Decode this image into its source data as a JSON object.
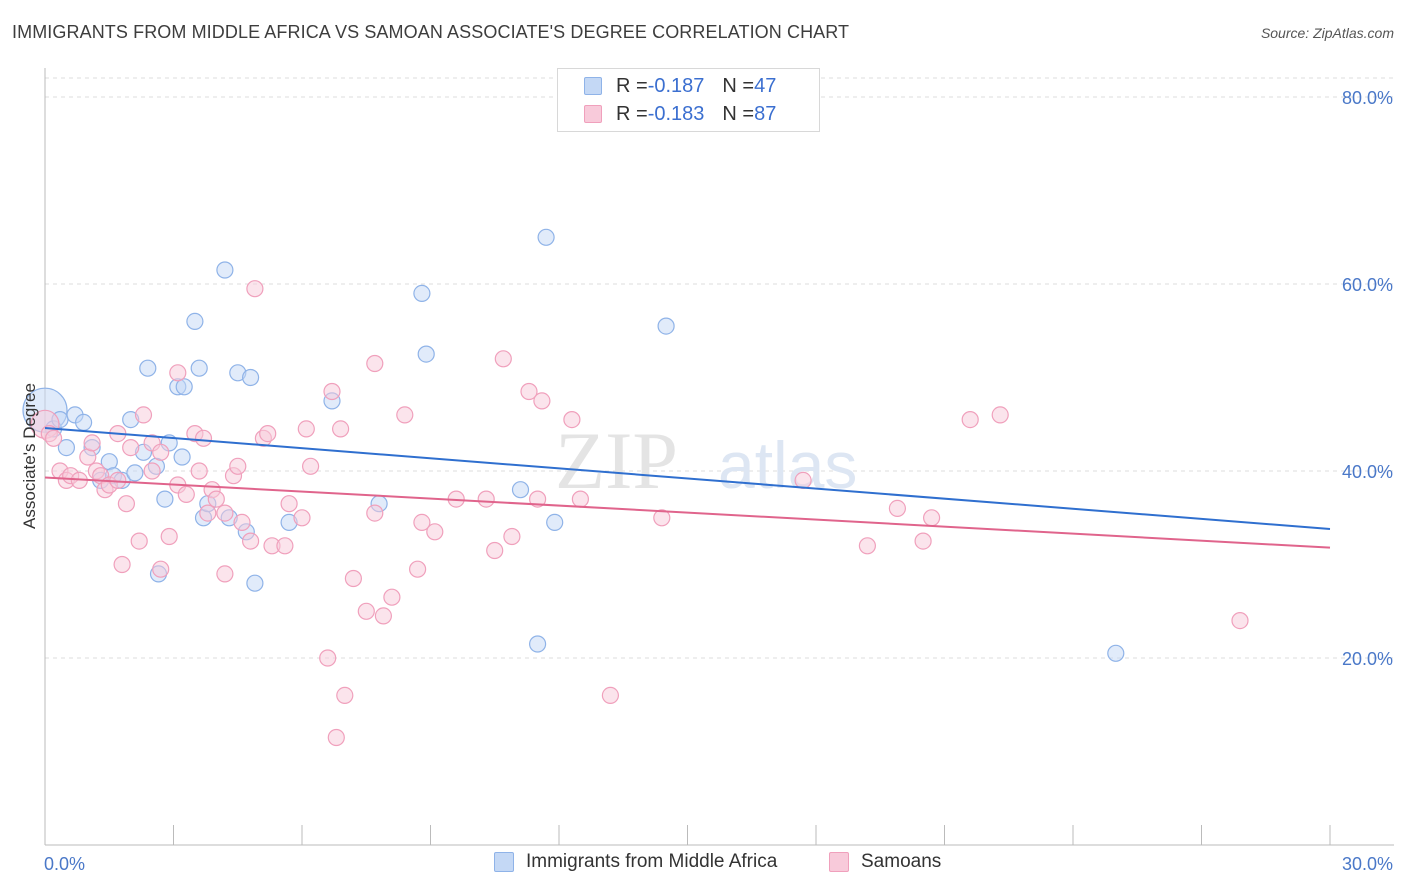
{
  "title": "IMMIGRANTS FROM MIDDLE AFRICA VS SAMOAN ASSOCIATE'S DEGREE CORRELATION CHART",
  "source": "Source: ZipAtlas.com",
  "watermark": {
    "zip": "ZIP",
    "atlas": "atlas"
  },
  "legend": {
    "rows": [
      {
        "r_label": "R = ",
        "r_value": "-0.187",
        "n_label": "N = ",
        "n_value": "47"
      },
      {
        "r_label": "R = ",
        "r_value": "-0.183",
        "n_label": "N = ",
        "n_value": "87"
      }
    ]
  },
  "chart_data": {
    "type": "scatter",
    "title": "IMMIGRANTS FROM MIDDLE AFRICA VS SAMOAN ASSOCIATE'S DEGREE CORRELATION CHART",
    "xlabel": "",
    "ylabel": "Associate's Degree",
    "xlim": [
      0,
      30
    ],
    "ylim": [
      0,
      80
    ],
    "x_tick_labels": [
      "0.0%",
      "30.0%"
    ],
    "y_tick_labels": [
      "20.0%",
      "40.0%",
      "60.0%",
      "80.0%"
    ],
    "y_ticks": [
      20,
      40,
      60,
      80
    ],
    "grid": true,
    "legend_position": "top-center",
    "series": [
      {
        "name": "Immigrants from Middle Africa",
        "color": "#8fb3e8",
        "fill": "#c4d8f5",
        "line_color": "#2f6fcf",
        "trend": {
          "x0": 0,
          "y0": 44.6,
          "x1": 30,
          "y1": 33.8
        },
        "points": [
          [
            0.0,
            46.5,
            22
          ],
          [
            0.2,
            44.5,
            8
          ],
          [
            0.35,
            45.5,
            8
          ],
          [
            0.5,
            42.5,
            8
          ],
          [
            0.7,
            46.0,
            8
          ],
          [
            0.9,
            45.2,
            8
          ],
          [
            1.1,
            42.5,
            8
          ],
          [
            1.3,
            39.0,
            8
          ],
          [
            1.5,
            41.0,
            8
          ],
          [
            1.6,
            39.5,
            8
          ],
          [
            1.8,
            39.0,
            8
          ],
          [
            2.0,
            45.5,
            8
          ],
          [
            2.1,
            39.8,
            8
          ],
          [
            2.3,
            42.0,
            8
          ],
          [
            2.4,
            51.0,
            8
          ],
          [
            2.6,
            40.5,
            8
          ],
          [
            2.65,
            29.0,
            8
          ],
          [
            2.8,
            37.0,
            8
          ],
          [
            2.9,
            43.0,
            8
          ],
          [
            3.1,
            49.0,
            8
          ],
          [
            3.2,
            41.5,
            8
          ],
          [
            3.25,
            49.0,
            8
          ],
          [
            3.5,
            56.0,
            8
          ],
          [
            3.6,
            51.0,
            8
          ],
          [
            3.7,
            35.0,
            8
          ],
          [
            3.8,
            36.5,
            8
          ],
          [
            4.2,
            61.5,
            8
          ],
          [
            4.3,
            35.0,
            8
          ],
          [
            4.5,
            50.5,
            8
          ],
          [
            4.7,
            33.5,
            8
          ],
          [
            4.8,
            50.0,
            8
          ],
          [
            4.9,
            28.0,
            8
          ],
          [
            5.7,
            34.5,
            8
          ],
          [
            6.7,
            47.5,
            8
          ],
          [
            7.8,
            36.5,
            8
          ],
          [
            8.8,
            59.0,
            8
          ],
          [
            8.9,
            52.5,
            8
          ],
          [
            11.1,
            38.0,
            8
          ],
          [
            11.5,
            21.5,
            8
          ],
          [
            11.9,
            34.5,
            8
          ],
          [
            11.7,
            65.0,
            8
          ],
          [
            14.5,
            55.5,
            8
          ],
          [
            25.0,
            20.5,
            8
          ]
        ]
      },
      {
        "name": "Samoans",
        "color": "#f0a0bc",
        "fill": "#f8cada",
        "line_color": "#e0648c",
        "trend": {
          "x0": 0,
          "y0": 39.3,
          "x1": 30,
          "y1": 31.8
        },
        "points": [
          [
            0.0,
            45.0,
            14
          ],
          [
            0.1,
            44.0,
            8
          ],
          [
            0.2,
            43.5,
            8
          ],
          [
            0.35,
            40.0,
            8
          ],
          [
            0.5,
            39.0,
            8
          ],
          [
            0.6,
            39.5,
            8
          ],
          [
            0.8,
            39.0,
            8
          ],
          [
            1.0,
            41.5,
            8
          ],
          [
            1.1,
            43.0,
            8
          ],
          [
            1.2,
            40.0,
            8
          ],
          [
            1.3,
            39.5,
            8
          ],
          [
            1.4,
            38.0,
            8
          ],
          [
            1.5,
            38.5,
            8
          ],
          [
            1.7,
            39.0,
            8
          ],
          [
            1.7,
            44.0,
            8
          ],
          [
            1.8,
            30.0,
            8
          ],
          [
            1.9,
            36.5,
            8
          ],
          [
            2.0,
            42.5,
            8
          ],
          [
            2.2,
            32.5,
            8
          ],
          [
            2.3,
            46.0,
            8
          ],
          [
            2.5,
            43.0,
            8
          ],
          [
            2.5,
            40.0,
            8
          ],
          [
            2.7,
            42.0,
            8
          ],
          [
            2.7,
            29.5,
            8
          ],
          [
            2.9,
            33.0,
            8
          ],
          [
            3.1,
            50.5,
            8
          ],
          [
            3.1,
            38.5,
            8
          ],
          [
            3.3,
            37.5,
            8
          ],
          [
            3.5,
            44.0,
            8
          ],
          [
            3.6,
            40.0,
            8
          ],
          [
            3.7,
            43.5,
            8
          ],
          [
            3.8,
            35.5,
            8
          ],
          [
            3.9,
            38.0,
            8
          ],
          [
            4.0,
            37.0,
            8
          ],
          [
            4.2,
            35.5,
            8
          ],
          [
            4.2,
            29.0,
            8
          ],
          [
            4.4,
            39.5,
            8
          ],
          [
            4.5,
            40.5,
            8
          ],
          [
            4.6,
            34.5,
            8
          ],
          [
            4.8,
            32.5,
            8
          ],
          [
            4.9,
            59.5,
            8
          ],
          [
            5.1,
            43.5,
            8
          ],
          [
            5.2,
            44.0,
            8
          ],
          [
            5.3,
            32.0,
            8
          ],
          [
            5.6,
            32.0,
            8
          ],
          [
            5.7,
            36.5,
            8
          ],
          [
            6.0,
            35.0,
            8
          ],
          [
            6.1,
            44.5,
            8
          ],
          [
            6.2,
            40.5,
            8
          ],
          [
            6.6,
            20.0,
            8
          ],
          [
            6.7,
            48.5,
            8
          ],
          [
            6.8,
            11.5,
            8
          ],
          [
            6.9,
            44.5,
            8
          ],
          [
            7.0,
            16.0,
            8
          ],
          [
            7.2,
            28.5,
            8
          ],
          [
            7.5,
            25.0,
            8
          ],
          [
            7.7,
            51.5,
            8
          ],
          [
            7.7,
            35.5,
            8
          ],
          [
            7.9,
            24.5,
            8
          ],
          [
            8.1,
            26.5,
            8
          ],
          [
            8.4,
            46.0,
            8
          ],
          [
            8.7,
            29.5,
            8
          ],
          [
            8.8,
            34.5,
            8
          ],
          [
            9.1,
            33.5,
            8
          ],
          [
            9.6,
            37.0,
            8
          ],
          [
            10.3,
            37.0,
            8
          ],
          [
            10.5,
            31.5,
            8
          ],
          [
            10.7,
            52.0,
            8
          ],
          [
            10.9,
            33.0,
            8
          ],
          [
            11.3,
            48.5,
            8
          ],
          [
            11.5,
            37.0,
            8
          ],
          [
            11.6,
            47.5,
            8
          ],
          [
            12.3,
            45.5,
            8
          ],
          [
            12.5,
            37.0,
            8
          ],
          [
            13.2,
            16.0,
            8
          ],
          [
            14.4,
            35.0,
            8
          ],
          [
            17.7,
            39.0,
            8
          ],
          [
            19.2,
            32.0,
            8
          ],
          [
            19.9,
            36.0,
            8
          ],
          [
            20.5,
            32.5,
            8
          ],
          [
            20.7,
            35.0,
            8
          ],
          [
            21.6,
            45.5,
            8
          ],
          [
            22.3,
            46.0,
            8
          ],
          [
            27.9,
            24.0,
            8
          ]
        ]
      }
    ]
  }
}
